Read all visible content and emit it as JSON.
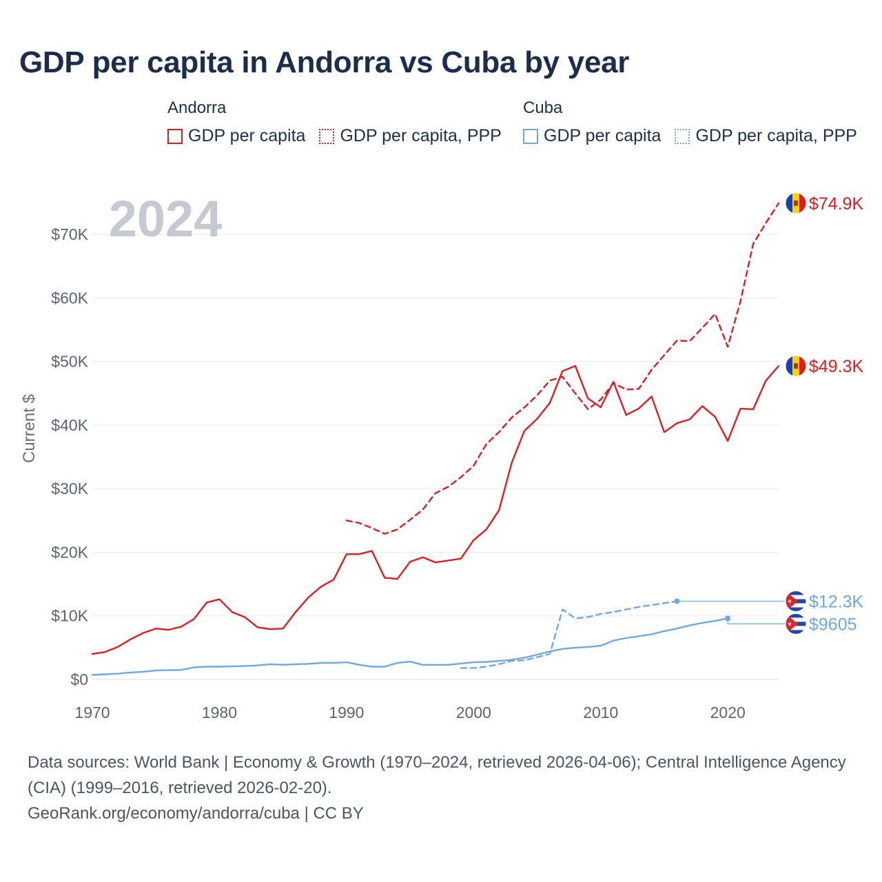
{
  "title": "GDP per capita in Andorra vs Cuba by year",
  "legend": {
    "groups": [
      {
        "name": "Andorra",
        "items": [
          {
            "label": "GDP per capita",
            "color": "#e31a1c",
            "style": "solid"
          },
          {
            "label": "GDP per capita, PPP",
            "color": "#e31a1c",
            "style": "dotted"
          }
        ]
      },
      {
        "name": "Cuba",
        "items": [
          {
            "label": "GDP per capita",
            "color": "#6ea8e4",
            "style": "solid"
          },
          {
            "label": "GDP per capita, PPP",
            "color": "#6ea8e4",
            "style": "dotted"
          }
        ]
      }
    ]
  },
  "chart_data": {
    "type": "line",
    "watermark_year": "2024",
    "ylabel": "Current $",
    "xlabel": "",
    "xlim": [
      1970,
      2024
    ],
    "ylim": [
      0,
      75000
    ],
    "x_ticks": [
      "1970",
      "1980",
      "1990",
      "2000",
      "2010",
      "2020"
    ],
    "y_ticks": [
      {
        "value": 0,
        "label": "$0"
      },
      {
        "value": 10000,
        "label": "$10K"
      },
      {
        "value": 20000,
        "label": "$20K"
      },
      {
        "value": 30000,
        "label": "$30K"
      },
      {
        "value": 40000,
        "label": "$40K"
      },
      {
        "value": 50000,
        "label": "$50K"
      },
      {
        "value": 60000,
        "label": "$60K"
      },
      {
        "value": 70000,
        "label": "$70K"
      }
    ],
    "series": [
      {
        "name": "Andorra GDP per capita",
        "color": "#e31a1c",
        "dash": "solid",
        "end_label": "$49.3K",
        "flag": "andorra",
        "x": [
          1970,
          1971,
          1972,
          1973,
          1974,
          1975,
          1976,
          1977,
          1978,
          1979,
          1980,
          1981,
          1982,
          1983,
          1984,
          1985,
          1986,
          1987,
          1988,
          1989,
          1990,
          1991,
          1992,
          1993,
          1994,
          1995,
          1996,
          1997,
          1998,
          1999,
          2000,
          2001,
          2002,
          2003,
          2004,
          2005,
          2006,
          2007,
          2008,
          2009,
          2010,
          2011,
          2012,
          2013,
          2014,
          2015,
          2016,
          2017,
          2018,
          2019,
          2020,
          2021,
          2022,
          2023,
          2024
        ],
        "values": [
          4000,
          4300,
          5100,
          6300,
          7300,
          8000,
          7800,
          8300,
          9500,
          12100,
          12600,
          10600,
          9800,
          8200,
          7900,
          8000,
          10600,
          12900,
          14600,
          15700,
          19700,
          19700,
          20200,
          16000,
          15800,
          18500,
          19200,
          18400,
          18700,
          19000,
          21900,
          23600,
          26600,
          34100,
          39100,
          41000,
          43500,
          48500,
          49300,
          44200,
          42800,
          46800,
          41600,
          42600,
          44500,
          38900,
          40300,
          40900,
          43000,
          41300,
          37500,
          42600,
          42500,
          47000,
          49300
        ]
      },
      {
        "name": "Andorra GDP per capita, PPP",
        "color": "#e31a1c",
        "dash": "dashed",
        "end_label": "$74.9K",
        "flag": "andorra",
        "x": [
          1990,
          1991,
          1992,
          1993,
          1994,
          1995,
          1996,
          1997,
          1998,
          1999,
          2000,
          2001,
          2002,
          2003,
          2004,
          2005,
          2006,
          2007,
          2008,
          2009,
          2010,
          2011,
          2012,
          2013,
          2014,
          2015,
          2016,
          2017,
          2018,
          2019,
          2020,
          2021,
          2022,
          2023,
          2024
        ],
        "values": [
          25000,
          24600,
          23800,
          22900,
          23600,
          25100,
          26700,
          29300,
          30300,
          31800,
          33600,
          37000,
          38900,
          41200,
          42800,
          44700,
          47000,
          47600,
          45000,
          42500,
          44000,
          46600,
          45600,
          45700,
          48700,
          51000,
          53300,
          53200,
          55300,
          57500,
          52300,
          59500,
          68500,
          71800,
          74900
        ]
      },
      {
        "name": "Cuba GDP per capita",
        "color": "#6ea8e4",
        "dash": "solid",
        "end_label": "$9605",
        "flag": "cuba",
        "x": [
          1970,
          1971,
          1972,
          1973,
          1974,
          1975,
          1976,
          1977,
          1978,
          1979,
          1980,
          1981,
          1982,
          1983,
          1984,
          1985,
          1986,
          1987,
          1988,
          1989,
          1990,
          1991,
          1992,
          1993,
          1994,
          1995,
          1996,
          1997,
          1998,
          1999,
          2000,
          2001,
          2002,
          2003,
          2004,
          2005,
          2006,
          2007,
          2008,
          2009,
          2010,
          2011,
          2012,
          2013,
          2014,
          2015,
          2016,
          2017,
          2018,
          2019,
          2020
        ],
        "values": [
          700,
          800,
          900,
          1100,
          1200,
          1400,
          1450,
          1500,
          1900,
          2000,
          2000,
          2050,
          2100,
          2200,
          2400,
          2300,
          2400,
          2450,
          2600,
          2600,
          2700,
          2300,
          2000,
          2000,
          2600,
          2800,
          2300,
          2300,
          2300,
          2500,
          2700,
          2750,
          2900,
          3100,
          3400,
          3900,
          4400,
          4800,
          5000,
          5100,
          5300,
          6100,
          6500,
          6800,
          7100,
          7600,
          8000,
          8500,
          8900,
          9200,
          9605
        ]
      },
      {
        "name": "Cuba GDP per capita, PPP",
        "color": "#6ea8e4",
        "dash": "dashed",
        "end_label": "$12.3K",
        "flag": "cuba",
        "x": [
          1999,
          2000,
          2001,
          2002,
          2003,
          2004,
          2005,
          2006,
          2007,
          2008,
          2009,
          2010,
          2011,
          2012,
          2013,
          2014,
          2015,
          2016
        ],
        "values": [
          1800,
          1800,
          2000,
          2400,
          2900,
          3000,
          3500,
          4000,
          11000,
          9600,
          9800,
          10300,
          10600,
          11000,
          11400,
          11700,
          12000,
          12300
        ]
      }
    ]
  },
  "footer": {
    "sources": "Data sources: World Bank | Economy & Growth (1970–2024, retrieved 2026-04-06); Central Intelligence Agency (CIA) (1999–2016, retrieved 2026-02-20).",
    "credit": "GeoRank.org/economy/andorra/cuba | CC BY"
  }
}
